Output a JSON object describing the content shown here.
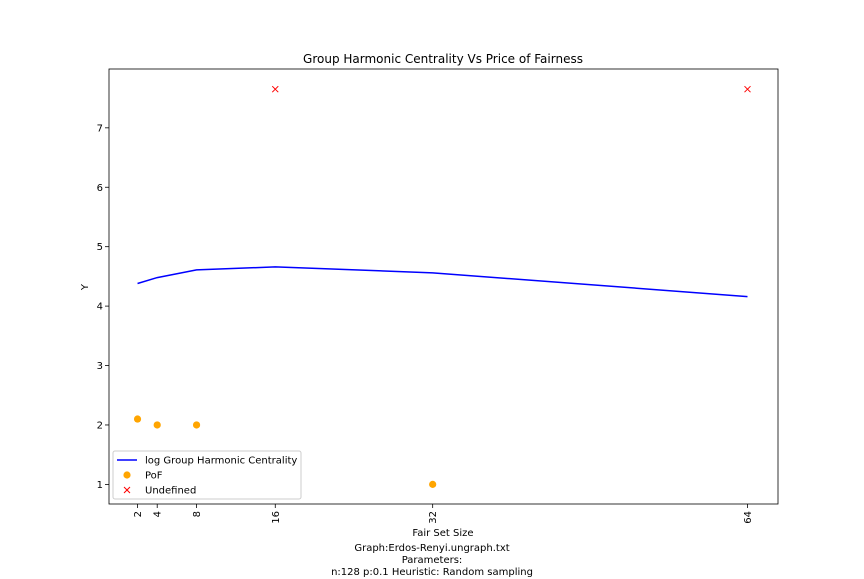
{
  "chart_data": {
    "type": "line",
    "title": "Group Harmonic Centrality Vs Price of Fairness",
    "xlabel": "Fair Set Size",
    "ylabel": "Y",
    "x": [
      2,
      4,
      8,
      16,
      32,
      64
    ],
    "xticks": [
      "2",
      "4",
      "8",
      "16",
      "32",
      "64"
    ],
    "yticks": [
      "1",
      "2",
      "3",
      "4",
      "5",
      "6",
      "7"
    ],
    "xlim": [
      -0.9,
      67.1
    ],
    "ylim": [
      0.67,
      7.99
    ],
    "series": [
      {
        "name": "log Group Harmonic Centrality",
        "kind": "line",
        "color": "#0000ff",
        "x": [
          2,
          4,
          8,
          16,
          32,
          64
        ],
        "y": [
          4.38,
          4.48,
          4.61,
          4.66,
          4.56,
          4.16
        ]
      },
      {
        "name": "PoF",
        "kind": "scatter",
        "marker": "circle",
        "color": "#ffa500",
        "x": [
          2,
          4,
          8,
          32
        ],
        "y": [
          2.1,
          2.0,
          2.0,
          1.0
        ]
      },
      {
        "name": "Undefined",
        "kind": "scatter",
        "marker": "x",
        "color": "#ff0000",
        "x": [
          16,
          64
        ],
        "y": [
          7.65,
          7.65
        ]
      }
    ],
    "legend_position": "lower-left",
    "grid": false
  },
  "caption": {
    "line1": "Graph:Erdos-Renyi.ungraph.txt",
    "line2": "Parameters:",
    "line3": "n:128 p:0.1  Heuristic: Random sampling"
  }
}
